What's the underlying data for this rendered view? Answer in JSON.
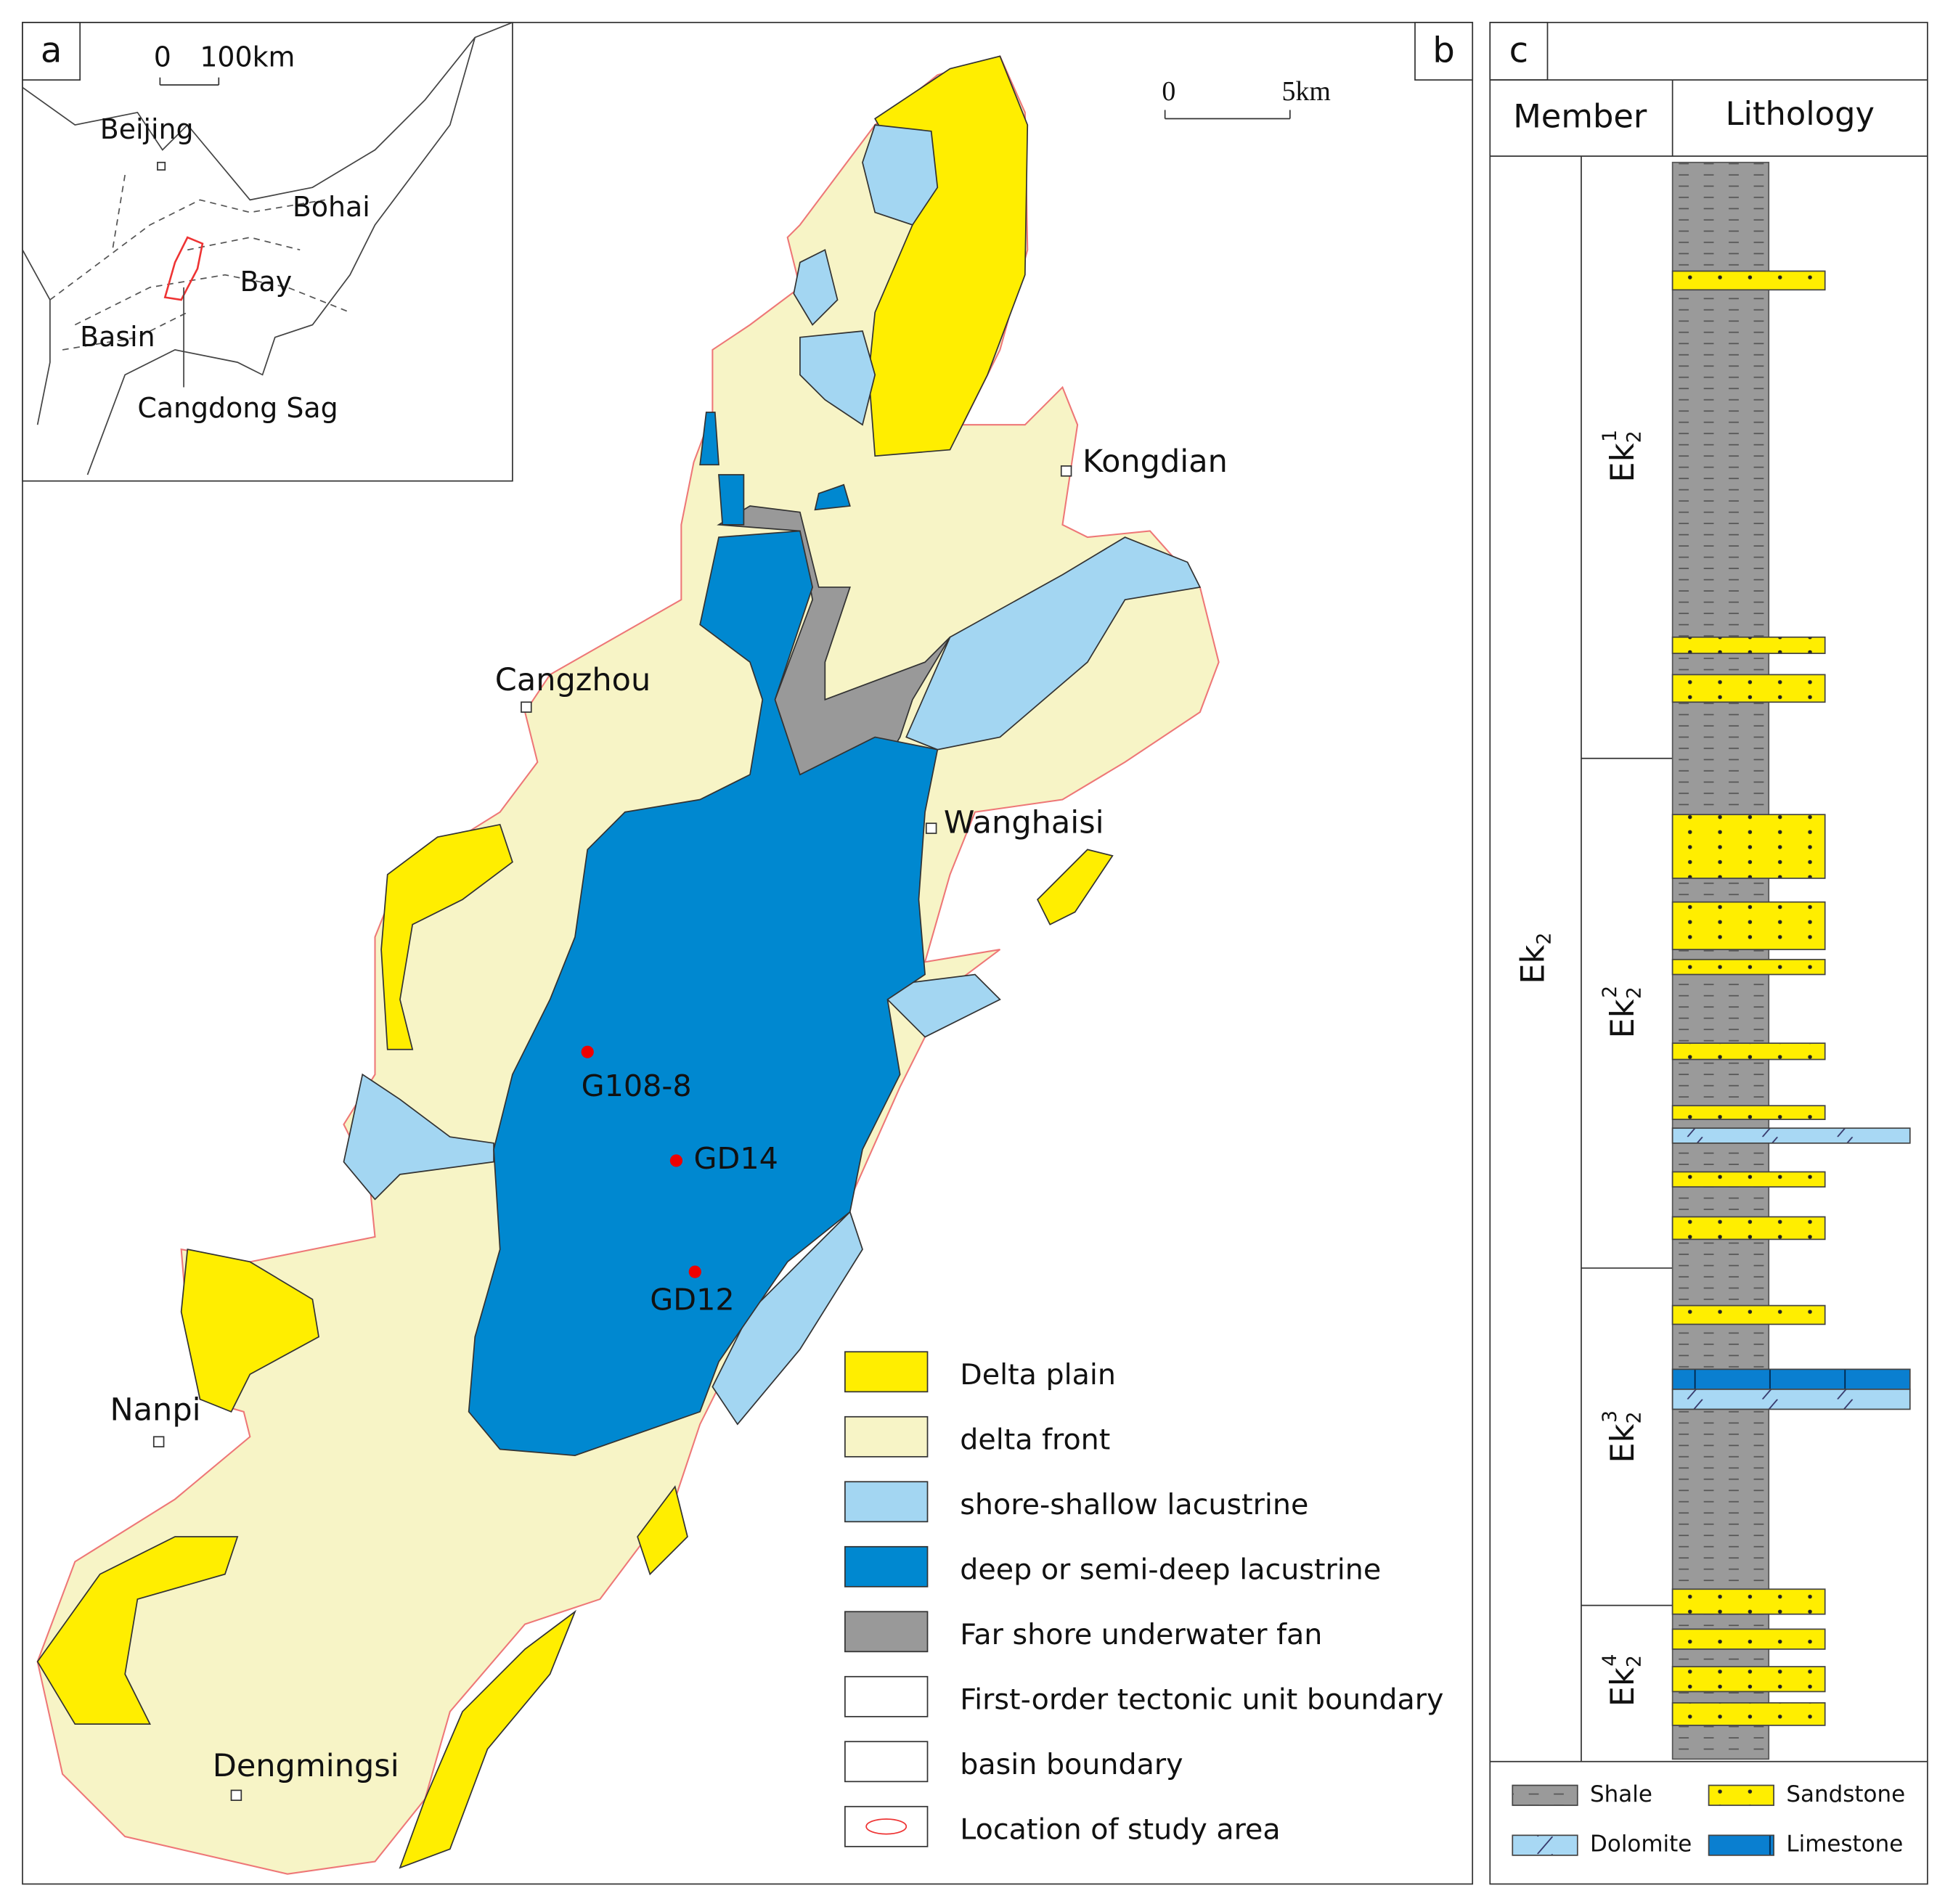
{
  "panels": {
    "a": "a",
    "b": "b",
    "c": "c"
  },
  "inset": {
    "scale_zero": "0",
    "scale_label": "100km",
    "places": [
      "Beijing",
      "Bohai",
      "Bay",
      "Basin",
      "Cangdong Sag"
    ]
  },
  "map": {
    "scale_zero": "0",
    "scale_label": "5km",
    "towns": [
      "Kongdian",
      "Cangzhou",
      "Wanghaisi",
      "Nanpi",
      "Dengmingsi"
    ],
    "wells": [
      "G108-8",
      "GD14",
      "GD12"
    ]
  },
  "legend": [
    "Delta plain",
    "delta front",
    "shore-shallow lacustrine",
    "deep or semi-deep lacustrine",
    "Far shore underwater fan",
    "First-order tectonic unit boundary",
    "basin boundary",
    "Location of study area"
  ],
  "column": {
    "headers": [
      "Member",
      "Lithology"
    ],
    "formation": {
      "base": "Ek",
      "sub": "2"
    },
    "members": [
      {
        "base": "Ek",
        "sub": "2",
        "sup": "1"
      },
      {
        "base": "Ek",
        "sub": "2",
        "sup": "2"
      },
      {
        "base": "Ek",
        "sub": "2",
        "sup": "3"
      },
      {
        "base": "Ek",
        "sub": "2",
        "sup": "4"
      }
    ],
    "lithology_legend": [
      "Shale",
      "Sandstone",
      "Dolomite",
      "Limestone"
    ]
  }
}
